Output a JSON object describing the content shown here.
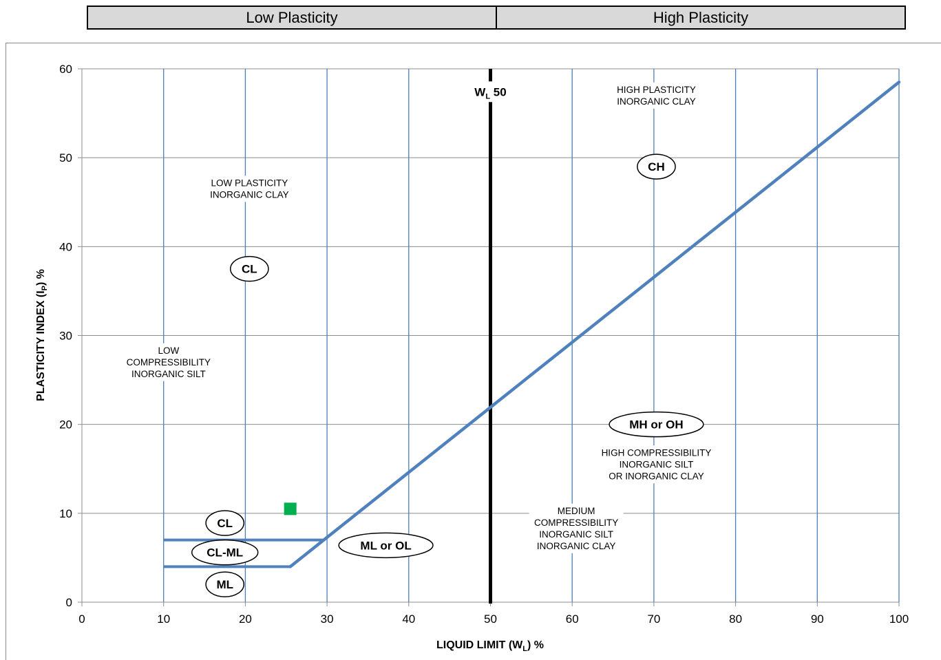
{
  "header": {
    "low_label": "Low Plasticity",
    "high_label": "High Plasticity"
  },
  "colors": {
    "grid": "#4a7ebb",
    "a_line": "#4f81bd",
    "wl50": "#000000",
    "point": "#00b050",
    "header_fill": "#d9d9d9"
  },
  "chart_data": {
    "type": "scatter",
    "title": "",
    "xlabel_main": "LIQUID LIMIT (W",
    "xlabel_sub": "L",
    "xlabel_tail": ") %",
    "ylabel_main": "PLASTICITY INDEX (I",
    "ylabel_sub": "P",
    "ylabel_tail": ") %",
    "xlim": [
      0,
      100
    ],
    "ylim": [
      0,
      60
    ],
    "x_ticks": [
      0,
      10,
      20,
      30,
      40,
      50,
      60,
      70,
      80,
      90,
      100
    ],
    "y_ticks": [
      0,
      10,
      20,
      30,
      40,
      50,
      60
    ],
    "grid": true,
    "a_line": [
      [
        25.5,
        4
      ],
      [
        100,
        58.5
      ]
    ],
    "zone_lines": [
      [
        [
          10,
          7
        ],
        [
          29.6,
          7
        ]
      ],
      [
        [
          10,
          4
        ],
        [
          25.5,
          4
        ]
      ]
    ],
    "wl50": {
      "x": 50,
      "label_main": "W",
      "label_sub": "L",
      "label_tail": " 50"
    },
    "points": [
      {
        "x": 25.5,
        "y": 10.5
      }
    ],
    "zone_labels": [
      {
        "text": "CL",
        "x": 20.5,
        "y": 37.5
      },
      {
        "text": "CH",
        "x": 70.3,
        "y": 49
      },
      {
        "text": "MH or OH",
        "x": 70.3,
        "y": 20
      },
      {
        "text": "CL",
        "x": 17.5,
        "y": 8.9
      },
      {
        "text": "CL-ML",
        "x": 17.5,
        "y": 5.6
      },
      {
        "text": "ML",
        "x": 17.5,
        "y": 2
      },
      {
        "text": "ML or OL",
        "x": 37.2,
        "y": 6.4
      }
    ],
    "annotations": [
      {
        "lines": [
          "LOW PLASTICITY",
          "INORGANIC CLAY"
        ],
        "x": 20.5,
        "y": 46.5
      },
      {
        "lines": [
          "HIGH PLASTICITY",
          "INORGANIC CLAY"
        ],
        "x": 70.3,
        "y": 57
      },
      {
        "lines": [
          "LOW",
          "COMPRESSIBILITY",
          "INORGANIC SILT"
        ],
        "x": 10.6,
        "y": 27
      },
      {
        "lines": [
          "HIGH COMPRESSIBILITY",
          "INORGANIC SILT",
          "OR INORGANIC CLAY"
        ],
        "x": 70.3,
        "y": 15.5
      },
      {
        "lines": [
          "MEDIUM",
          "COMPRESSIBILITY",
          "INORGANIC SILT",
          "INORGANIC CLAY"
        ],
        "x": 60.5,
        "y": 8.3
      }
    ]
  }
}
